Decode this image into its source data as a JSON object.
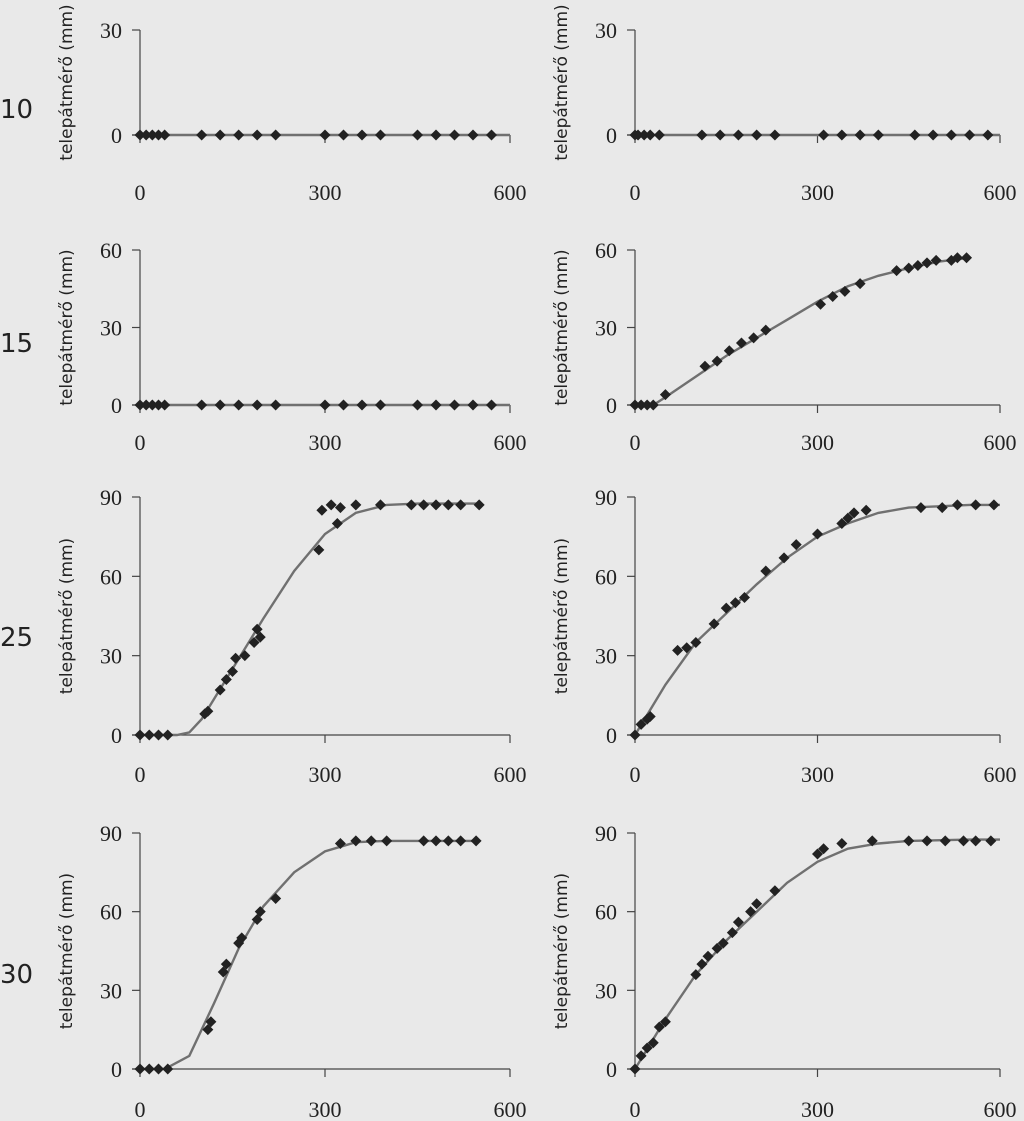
{
  "panel_rows": [
    "10",
    "15",
    "25",
    "30"
  ],
  "chart_data": [
    {
      "type": "scatter",
      "row": "10",
      "ylabel": "telepátmérő (mm)",
      "xticks": [
        "0",
        "300",
        "600"
      ],
      "yticks": [
        "0",
        "30"
      ],
      "xlim": [
        0,
        600
      ],
      "ylim": [
        0,
        30
      ],
      "points": [
        [
          0,
          0
        ],
        [
          10,
          0
        ],
        [
          20,
          0
        ],
        [
          30,
          0
        ],
        [
          40,
          0
        ],
        [
          100,
          0
        ],
        [
          130,
          0
        ],
        [
          160,
          0
        ],
        [
          190,
          0
        ],
        [
          220,
          0
        ],
        [
          300,
          0
        ],
        [
          330,
          0
        ],
        [
          360,
          0
        ],
        [
          390,
          0
        ],
        [
          450,
          0
        ],
        [
          480,
          0
        ],
        [
          510,
          0
        ],
        [
          540,
          0
        ],
        [
          570,
          0
        ]
      ],
      "fit": [
        [
          0,
          0
        ],
        [
          600,
          0
        ]
      ]
    },
    {
      "type": "scatter",
      "row": "10",
      "ylabel": "telepátmérő (mm)",
      "xticks": [
        "0",
        "300",
        "600"
      ],
      "yticks": [
        "0",
        "30"
      ],
      "xlim": [
        0,
        600
      ],
      "ylim": [
        0,
        30
      ],
      "points": [
        [
          0,
          0
        ],
        [
          5,
          0
        ],
        [
          15,
          0
        ],
        [
          25,
          0
        ],
        [
          40,
          0
        ],
        [
          110,
          0
        ],
        [
          140,
          0
        ],
        [
          170,
          0
        ],
        [
          200,
          0
        ],
        [
          230,
          0
        ],
        [
          310,
          0
        ],
        [
          340,
          0
        ],
        [
          370,
          0
        ],
        [
          400,
          0
        ],
        [
          460,
          0
        ],
        [
          490,
          0
        ],
        [
          520,
          0
        ],
        [
          550,
          0
        ],
        [
          580,
          0
        ]
      ],
      "fit": [
        [
          0,
          0
        ],
        [
          600,
          0
        ]
      ]
    },
    {
      "type": "scatter",
      "row": "15",
      "ylabel": "telepátmérő (mm)",
      "xticks": [
        "0",
        "300",
        "600"
      ],
      "yticks": [
        "0",
        "30",
        "60"
      ],
      "xlim": [
        0,
        600
      ],
      "ylim": [
        0,
        60
      ],
      "points": [
        [
          0,
          0
        ],
        [
          10,
          0
        ],
        [
          20,
          0
        ],
        [
          30,
          0
        ],
        [
          40,
          0
        ],
        [
          100,
          0
        ],
        [
          130,
          0
        ],
        [
          160,
          0
        ],
        [
          190,
          0
        ],
        [
          220,
          0
        ],
        [
          300,
          0
        ],
        [
          330,
          0
        ],
        [
          360,
          0
        ],
        [
          390,
          0
        ],
        [
          450,
          0
        ],
        [
          480,
          0
        ],
        [
          510,
          0
        ],
        [
          540,
          0
        ],
        [
          570,
          0
        ]
      ],
      "fit": [
        [
          0,
          0
        ],
        [
          600,
          0
        ]
      ]
    },
    {
      "type": "scatter",
      "row": "15",
      "ylabel": "telepátmérő (mm)",
      "xticks": [
        "0",
        "300",
        "600"
      ],
      "yticks": [
        "0",
        "30",
        "60"
      ],
      "xlim": [
        0,
        600
      ],
      "ylim": [
        0,
        60
      ],
      "points": [
        [
          0,
          0
        ],
        [
          10,
          0
        ],
        [
          20,
          0
        ],
        [
          30,
          0
        ],
        [
          50,
          4
        ],
        [
          115,
          15
        ],
        [
          135,
          17
        ],
        [
          155,
          21
        ],
        [
          175,
          24
        ],
        [
          195,
          26
        ],
        [
          215,
          29
        ],
        [
          305,
          39
        ],
        [
          325,
          42
        ],
        [
          345,
          44
        ],
        [
          370,
          47
        ],
        [
          430,
          52
        ],
        [
          450,
          53
        ],
        [
          465,
          54
        ],
        [
          480,
          55
        ],
        [
          495,
          56
        ],
        [
          520,
          56
        ],
        [
          530,
          57
        ],
        [
          545,
          57
        ]
      ],
      "fit": [
        [
          0,
          0
        ],
        [
          30,
          0
        ],
        [
          50,
          3
        ],
        [
          100,
          11
        ],
        [
          150,
          19
        ],
        [
          200,
          26
        ],
        [
          250,
          33
        ],
        [
          300,
          40
        ],
        [
          350,
          46
        ],
        [
          400,
          50
        ],
        [
          450,
          53
        ],
        [
          500,
          55.5
        ],
        [
          550,
          57
        ]
      ]
    },
    {
      "type": "scatter",
      "row": "25",
      "ylabel": "telepátmérő (mm)",
      "xticks": [
        "0",
        "300",
        "600"
      ],
      "yticks": [
        "0",
        "30",
        "60",
        "90"
      ],
      "xlim": [
        0,
        600
      ],
      "ylim": [
        0,
        90
      ],
      "points": [
        [
          0,
          0
        ],
        [
          15,
          0
        ],
        [
          30,
          0
        ],
        [
          45,
          0
        ],
        [
          105,
          8
        ],
        [
          110,
          9
        ],
        [
          130,
          17
        ],
        [
          140,
          21
        ],
        [
          150,
          24
        ],
        [
          155,
          29
        ],
        [
          170,
          30
        ],
        [
          185,
          35
        ],
        [
          190,
          40
        ],
        [
          195,
          37
        ],
        [
          290,
          70
        ],
        [
          295,
          85
        ],
        [
          310,
          87
        ],
        [
          320,
          80
        ],
        [
          325,
          86
        ],
        [
          350,
          87
        ],
        [
          390,
          87
        ],
        [
          440,
          87
        ],
        [
          460,
          87
        ],
        [
          480,
          87
        ],
        [
          500,
          87
        ],
        [
          520,
          87
        ],
        [
          550,
          87
        ]
      ],
      "fit": [
        [
          0,
          0
        ],
        [
          60,
          0
        ],
        [
          80,
          1
        ],
        [
          100,
          6
        ],
        [
          150,
          25
        ],
        [
          200,
          44
        ],
        [
          250,
          62
        ],
        [
          300,
          76
        ],
        [
          350,
          84
        ],
        [
          400,
          87
        ],
        [
          450,
          87.5
        ],
        [
          550,
          87.5
        ]
      ]
    },
    {
      "type": "scatter",
      "row": "25",
      "ylabel": "telepátmérő (mm)",
      "xticks": [
        "0",
        "300",
        "600"
      ],
      "yticks": [
        "0",
        "30",
        "60",
        "90"
      ],
      "xlim": [
        0,
        600
      ],
      "ylim": [
        0,
        90
      ],
      "points": [
        [
          0,
          0
        ],
        [
          10,
          4
        ],
        [
          20,
          6
        ],
        [
          25,
          7
        ],
        [
          70,
          32
        ],
        [
          85,
          33
        ],
        [
          100,
          35
        ],
        [
          130,
          42
        ],
        [
          150,
          48
        ],
        [
          165,
          50
        ],
        [
          180,
          52
        ],
        [
          215,
          62
        ],
        [
          245,
          67
        ],
        [
          265,
          72
        ],
        [
          300,
          76
        ],
        [
          340,
          80
        ],
        [
          350,
          82
        ],
        [
          360,
          84
        ],
        [
          380,
          85
        ],
        [
          470,
          86
        ],
        [
          505,
          86
        ],
        [
          530,
          87
        ],
        [
          560,
          87
        ],
        [
          590,
          87
        ]
      ],
      "fit": [
        [
          0,
          0
        ],
        [
          50,
          19
        ],
        [
          100,
          35
        ],
        [
          150,
          46
        ],
        [
          200,
          57
        ],
        [
          250,
          67
        ],
        [
          300,
          75
        ],
        [
          350,
          80
        ],
        [
          400,
          84
        ],
        [
          450,
          86
        ],
        [
          500,
          86.5
        ],
        [
          550,
          87
        ],
        [
          600,
          87
        ]
      ]
    },
    {
      "type": "scatter",
      "row": "30",
      "ylabel": "telepátmérő (mm)",
      "xticks": [
        "0",
        "300",
        "600"
      ],
      "yticks": [
        "0",
        "30",
        "60",
        "90"
      ],
      "xlim": [
        0,
        600
      ],
      "ylim": [
        0,
        90
      ],
      "points": [
        [
          0,
          0
        ],
        [
          15,
          0
        ],
        [
          30,
          0
        ],
        [
          45,
          0
        ],
        [
          110,
          15
        ],
        [
          115,
          18
        ],
        [
          135,
          37
        ],
        [
          140,
          40
        ],
        [
          160,
          48
        ],
        [
          165,
          50
        ],
        [
          190,
          57
        ],
        [
          195,
          60
        ],
        [
          220,
          65
        ],
        [
          325,
          86
        ],
        [
          350,
          87
        ],
        [
          375,
          87
        ],
        [
          400,
          87
        ],
        [
          460,
          87
        ],
        [
          480,
          87
        ],
        [
          500,
          87
        ],
        [
          520,
          87
        ],
        [
          545,
          87
        ]
      ],
      "fit": [
        [
          0,
          0
        ],
        [
          40,
          0
        ],
        [
          80,
          5
        ],
        [
          120,
          25
        ],
        [
          160,
          46
        ],
        [
          200,
          62
        ],
        [
          250,
          75
        ],
        [
          300,
          83
        ],
        [
          350,
          86.5
        ],
        [
          400,
          87
        ],
        [
          450,
          87
        ],
        [
          550,
          87
        ]
      ]
    },
    {
      "type": "scatter",
      "row": "30",
      "ylabel": "telepátmérő (mm)",
      "xticks": [
        "0",
        "300",
        "600"
      ],
      "yticks": [
        "0",
        "30",
        "60",
        "90"
      ],
      "xlim": [
        0,
        600
      ],
      "ylim": [
        0,
        90
      ],
      "points": [
        [
          0,
          0
        ],
        [
          10,
          5
        ],
        [
          20,
          8
        ],
        [
          30,
          10
        ],
        [
          40,
          16
        ],
        [
          50,
          18
        ],
        [
          100,
          36
        ],
        [
          110,
          40
        ],
        [
          120,
          43
        ],
        [
          135,
          46
        ],
        [
          145,
          48
        ],
        [
          160,
          52
        ],
        [
          170,
          56
        ],
        [
          190,
          60
        ],
        [
          200,
          63
        ],
        [
          230,
          68
        ],
        [
          300,
          82
        ],
        [
          310,
          84
        ],
        [
          340,
          86
        ],
        [
          390,
          87
        ],
        [
          450,
          87
        ],
        [
          480,
          87
        ],
        [
          510,
          87
        ],
        [
          540,
          87
        ],
        [
          560,
          87
        ],
        [
          585,
          87
        ]
      ],
      "fit": [
        [
          0,
          0
        ],
        [
          50,
          19
        ],
        [
          100,
          36
        ],
        [
          150,
          49
        ],
        [
          200,
          60
        ],
        [
          250,
          71
        ],
        [
          300,
          79
        ],
        [
          350,
          84
        ],
        [
          400,
          86
        ],
        [
          450,
          87
        ],
        [
          550,
          87.5
        ],
        [
          600,
          87.5
        ]
      ]
    }
  ]
}
